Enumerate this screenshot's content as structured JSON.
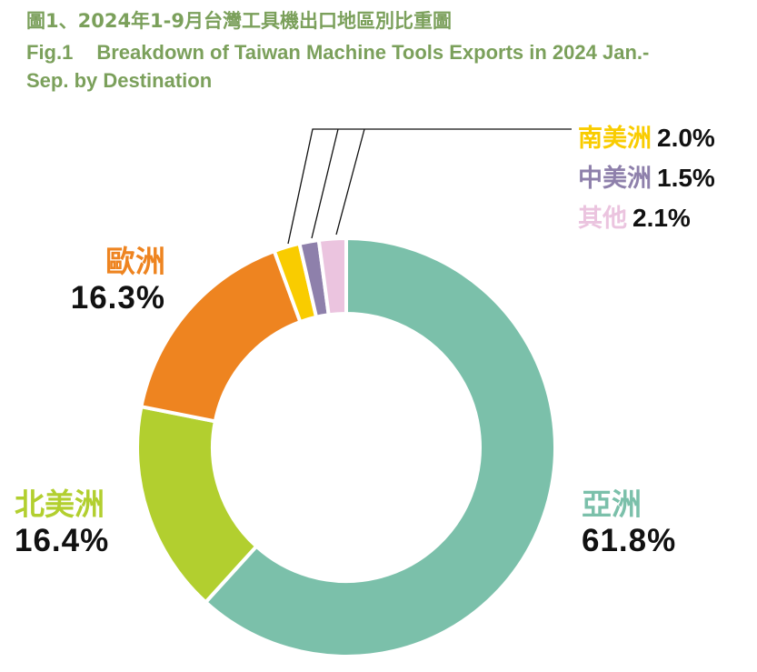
{
  "title": {
    "zh": "圖1、2024年1-9月台灣工具機出口地區別比重圖",
    "en_fig": "Fig.1",
    "en_line1": "Breakdown of Taiwan Machine Tools Exports in 2024 Jan.-",
    "en_line2": "Sep. by Destination"
  },
  "labels": {
    "asia": {
      "name": "亞洲",
      "pct": "61.8%",
      "color": "#7bc0aa"
    },
    "north_america": {
      "name": "北美洲",
      "pct": "16.4%",
      "color": "#b2cf2f"
    },
    "europe": {
      "name": "歐洲",
      "pct": "16.3%",
      "color": "#ee8420"
    },
    "south_america": {
      "name": "南美洲",
      "pct": "2.0%",
      "color": "#f9cc00"
    },
    "central_america": {
      "name": "中美洲",
      "pct": "1.5%",
      "color": "#8e80ab"
    },
    "others": {
      "name": "其他",
      "pct": "2.1%",
      "color": "#ebc4df"
    }
  },
  "chart_data": {
    "type": "pie",
    "subtype": "donut",
    "title": "圖1、2024年1-9月台灣工具機出口地區別比重圖 / Fig.1 Breakdown of Taiwan Machine Tools Exports in 2024 Jan.-Sep. by Destination",
    "categories": [
      "亞洲",
      "北美洲",
      "歐洲",
      "南美洲",
      "中美洲",
      "其他"
    ],
    "categories_en": [
      "Asia",
      "North America",
      "Europe",
      "South America",
      "Central America",
      "Others"
    ],
    "values": [
      61.8,
      16.4,
      16.3,
      2.0,
      1.5,
      2.1
    ],
    "unit": "%",
    "colors": [
      "#7bc0aa",
      "#b2cf2f",
      "#ee8420",
      "#f9cc00",
      "#8e80ab",
      "#ebc4df"
    ],
    "start_angle": "12 o'clock, clockwise",
    "legend": "none (direct labels with leader lines for small slices)"
  }
}
